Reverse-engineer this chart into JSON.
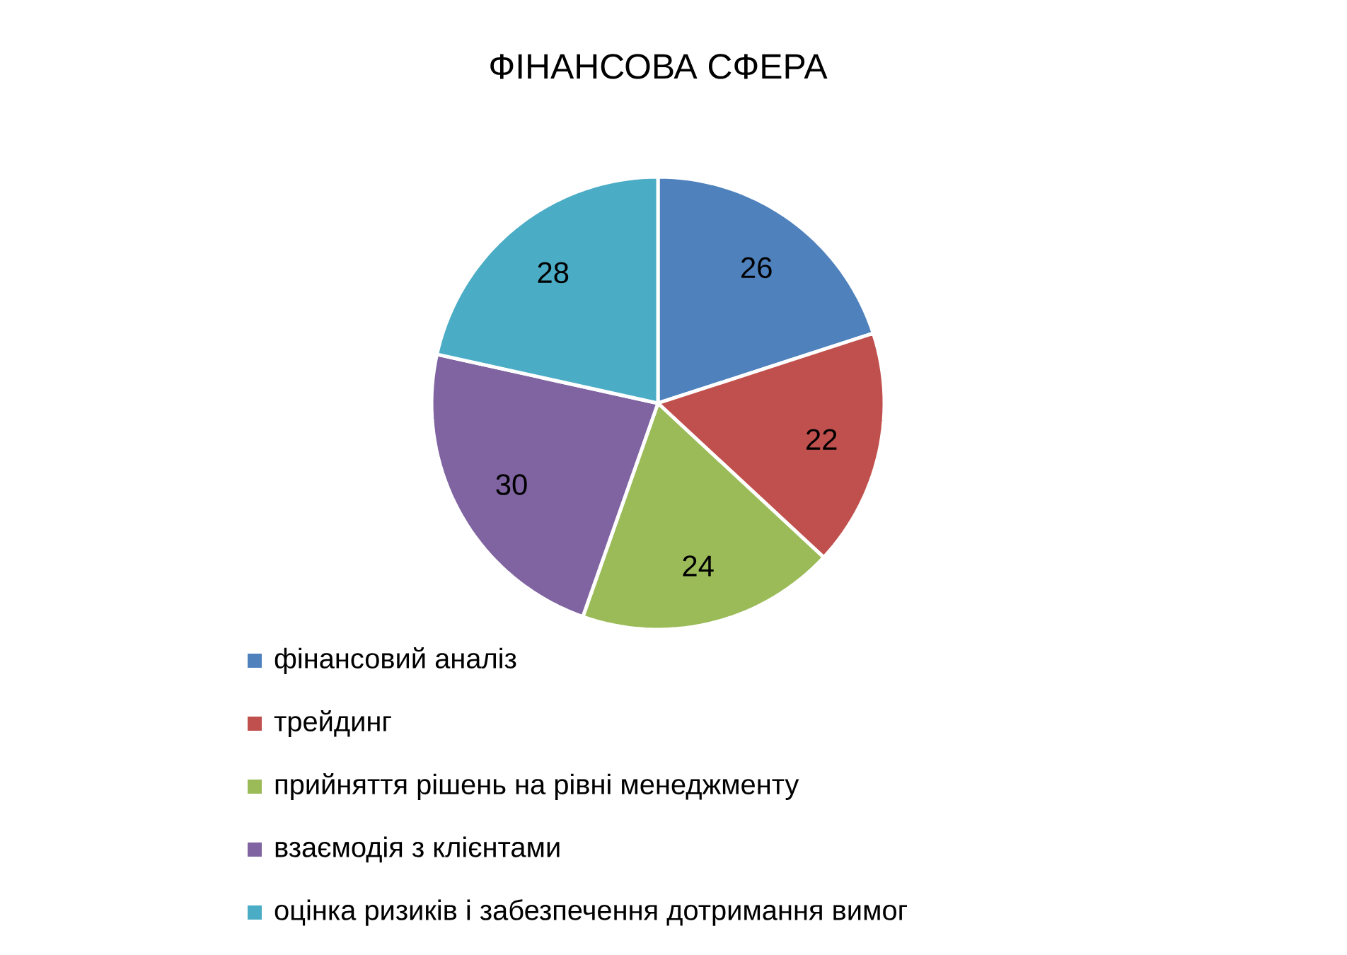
{
  "chart_data": {
    "type": "pie",
    "title": "ФІНАНСОВА СФЕРА",
    "categories": [
      "фінансовий аналіз",
      "трейдинг",
      "прийняття рішень на рівні менеджменту",
      "взаємодія з клієнтами",
      "оцінка ризиків і забезпечення дотримання вимог"
    ],
    "values": [
      26,
      22,
      24,
      30,
      28
    ],
    "colors": [
      "#4f81bd",
      "#c0504d",
      "#9bbb59",
      "#8064a2",
      "#4bacc6"
    ],
    "data_labels": true,
    "legend": "bottom"
  }
}
